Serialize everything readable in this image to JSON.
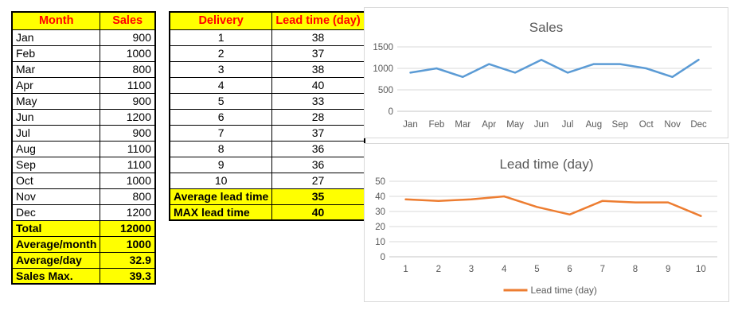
{
  "tables": {
    "sales": {
      "headers": [
        "Month",
        "Sales"
      ],
      "rows": [
        [
          "Jan",
          "900"
        ],
        [
          "Feb",
          "1000"
        ],
        [
          "Mar",
          "800"
        ],
        [
          "Apr",
          "1100"
        ],
        [
          "May",
          "900"
        ],
        [
          "Jun",
          "1200"
        ],
        [
          "Jul",
          "900"
        ],
        [
          "Aug",
          "1100"
        ],
        [
          "Sep",
          "1100"
        ],
        [
          "Oct",
          "1000"
        ],
        [
          "Nov",
          "800"
        ],
        [
          "Dec",
          "1200"
        ]
      ],
      "summary": [
        [
          "Total",
          "12000"
        ],
        [
          "Average/month",
          "1000"
        ],
        [
          "Average/day",
          "32.9"
        ],
        [
          "Sales Max.",
          "39.3"
        ]
      ]
    },
    "lead_time": {
      "headers": [
        "Delivery",
        "Lead time (day)"
      ],
      "rows": [
        [
          "1",
          "38"
        ],
        [
          "2",
          "37"
        ],
        [
          "3",
          "38"
        ],
        [
          "4",
          "40"
        ],
        [
          "5",
          "33"
        ],
        [
          "6",
          "28"
        ],
        [
          "7",
          "37"
        ],
        [
          "8",
          "36"
        ],
        [
          "9",
          "36"
        ],
        [
          "10",
          "27"
        ]
      ],
      "summary": [
        [
          "Average lead time",
          "35"
        ],
        [
          "MAX lead time",
          "40"
        ]
      ]
    }
  },
  "colors": {
    "table_header_bg": "#FFFF00",
    "table_header_text": "#FF0000",
    "summary_bg": "#FFFF00",
    "sales_line": "#5B9BD5",
    "lead_time_line": "#ED7D31",
    "gridline": "#D9D9D9",
    "axis_line": "#C6C6C6",
    "chart_text": "#595959",
    "chart_border": "#D9D9D9"
  },
  "chart_data": [
    {
      "type": "line",
      "title": "Sales",
      "categories": [
        "Jan",
        "Feb",
        "Mar",
        "Apr",
        "May",
        "Jun",
        "Jul",
        "Aug",
        "Sep",
        "Oct",
        "Nov",
        "Dec"
      ],
      "values": [
        900,
        1000,
        800,
        1100,
        900,
        1200,
        900,
        1100,
        1100,
        1000,
        800,
        1200
      ],
      "xlabel": "",
      "ylabel": "",
      "ylim": [
        0,
        1500
      ],
      "yticks": [
        0,
        500,
        1000,
        1500
      ],
      "grid": true,
      "legend": null,
      "color": "#5B9BD5"
    },
    {
      "type": "line",
      "title": "Lead time (day)",
      "categories": [
        "1",
        "2",
        "3",
        "4",
        "5",
        "6",
        "7",
        "8",
        "9",
        "10"
      ],
      "values": [
        38,
        37,
        38,
        40,
        33,
        28,
        37,
        36,
        36,
        27
      ],
      "xlabel": "",
      "ylabel": "",
      "ylim": [
        0,
        50
      ],
      "yticks": [
        0,
        10,
        20,
        30,
        40,
        50
      ],
      "grid": true,
      "legend": "Lead time (day)",
      "legend_position": "bottom",
      "color": "#ED7D31"
    }
  ]
}
